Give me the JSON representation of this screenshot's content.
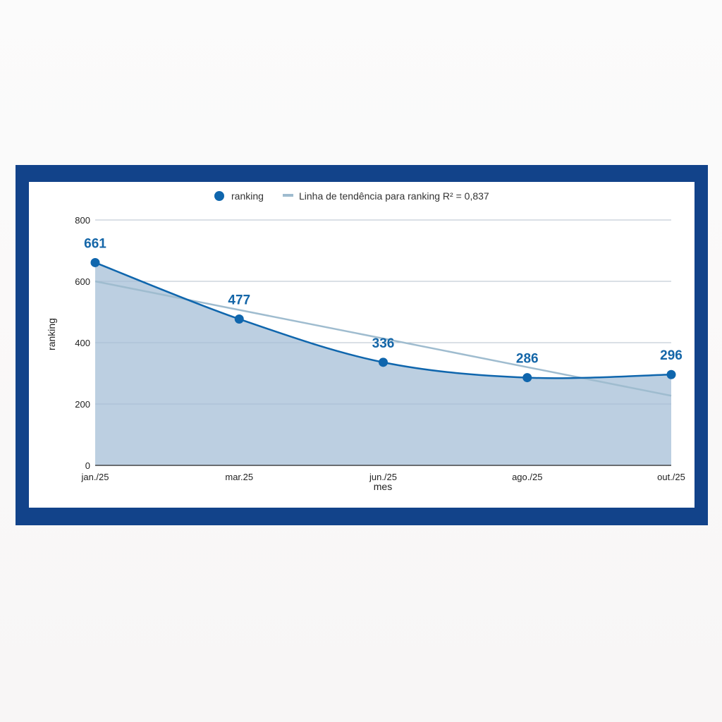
{
  "chart_data": {
    "type": "area",
    "categories": [
      "jan./25",
      "mar.25",
      "jun./25",
      "ago./25",
      "out./25"
    ],
    "series": [
      {
        "name": "ranking",
        "values": [
          661,
          477,
          336,
          286,
          296
        ]
      }
    ],
    "trendline": {
      "label": "Linha de tendência para ranking R² = 0,837",
      "start": 600,
      "end": 227
    },
    "xlabel": "mes",
    "ylabel": "ranking",
    "ylim": [
      0,
      800
    ],
    "yticks": [
      "0",
      "200",
      "400",
      "600",
      "800"
    ],
    "legend_position": "top",
    "grid": true,
    "colors": {
      "series": "#0f66ad",
      "area": "#bccfe1",
      "trend": "#9fbccf",
      "label": "#1466a8",
      "frame": "#12438a"
    }
  }
}
